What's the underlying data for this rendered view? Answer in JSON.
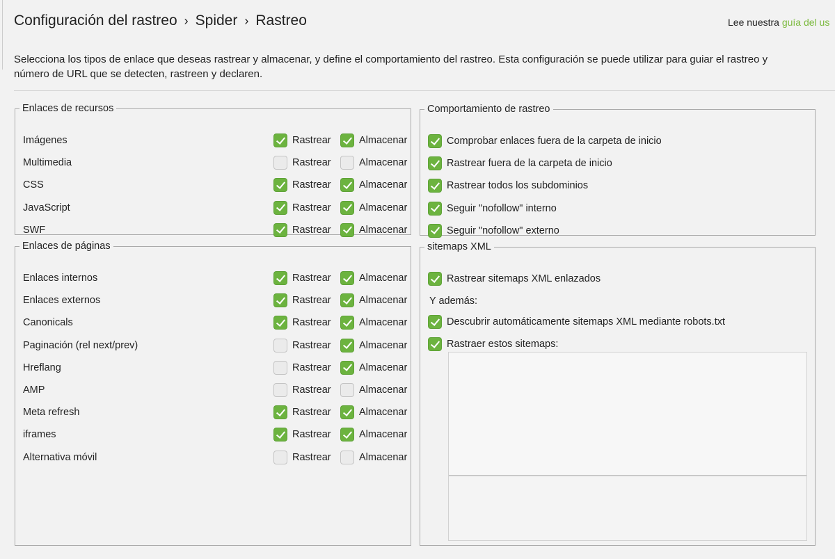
{
  "breadcrumb": [
    "Configuración del rastreo",
    "Spider",
    "Rastreo"
  ],
  "guide": {
    "prefix": "Lee nuestra",
    "link": "guía del us"
  },
  "description": [
    "Selecciona los tipos de enlace que deseas rastrear y almacenar, y define el comportamiento del rastreo. Esta configuración se puede utilizar para guiar el rastreo y",
    "número de URL que se detecten, rastreen y declaren."
  ],
  "labels": {
    "crawl": "Rastrear",
    "store": "Almacenar"
  },
  "accent": "#6cb33f",
  "resources": {
    "title": "Enlaces de recursos",
    "items": [
      {
        "label": "Imágenes",
        "crawl": true,
        "store": true
      },
      {
        "label": "Multimedia",
        "crawl": false,
        "store": false
      },
      {
        "label": "CSS",
        "crawl": true,
        "store": true
      },
      {
        "label": "JavaScript",
        "crawl": true,
        "store": true
      },
      {
        "label": "SWF",
        "crawl": true,
        "store": true
      }
    ]
  },
  "pages": {
    "title": "Enlaces de páginas",
    "items": [
      {
        "label": "Enlaces internos",
        "crawl": true,
        "store": true
      },
      {
        "label": "Enlaces externos",
        "crawl": true,
        "store": true
      },
      {
        "label": "Canonicals",
        "crawl": true,
        "store": true
      },
      {
        "label": "Paginación (rel next/prev)",
        "crawl": false,
        "store": true
      },
      {
        "label": "Hreflang",
        "crawl": false,
        "store": true
      },
      {
        "label": "AMP",
        "crawl": false,
        "store": false
      },
      {
        "label": "Meta refresh",
        "crawl": true,
        "store": true
      },
      {
        "label": "iframes",
        "crawl": true,
        "store": true
      },
      {
        "label": "Alternativa móvil",
        "crawl": false,
        "store": false
      }
    ]
  },
  "behaviour": {
    "title": "Comportamiento de rastreo",
    "items": [
      {
        "label": "Comprobar enlaces fuera de la carpeta de inicio",
        "checked": true
      },
      {
        "label": "Rastrear fuera de la carpeta de inicio",
        "checked": true
      },
      {
        "label": "Rastrear todos los subdominios",
        "checked": true
      },
      {
        "label": "Seguir \"nofollow\" interno",
        "checked": true
      },
      {
        "label": "Seguir \"nofollow\" externo",
        "checked": true
      }
    ]
  },
  "sitemaps": {
    "title": "sitemaps XML",
    "crawl_linked": {
      "label": "Rastrear sitemaps XML enlazados",
      "checked": true
    },
    "also": "Y además:",
    "discover": {
      "label": "Descubrir automáticamente sitemaps XML mediante robots.txt",
      "checked": true
    },
    "crawl_these": {
      "label": "Rastraer estos sitemaps:",
      "checked": true
    },
    "list_value": ""
  }
}
